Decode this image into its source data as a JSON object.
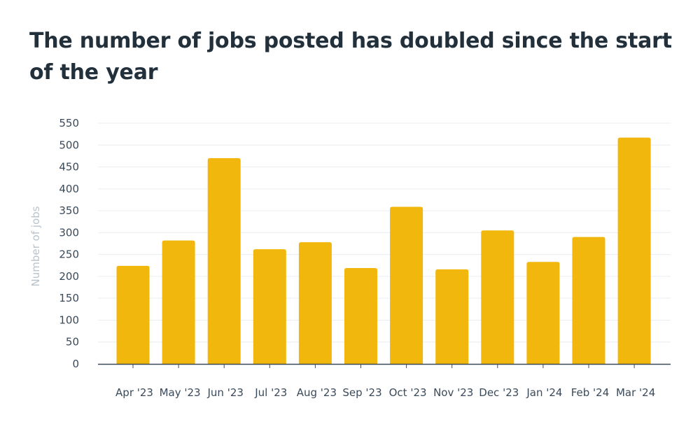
{
  "chart_data": {
    "type": "bar",
    "title": "The number of jobs posted has doubled since the start of the year",
    "ylabel": "Number of jobs",
    "xlabel": "",
    "categories": [
      "Apr '23",
      "May '23",
      "Jun '23",
      "Jul '23",
      "Aug '23",
      "Sep '23",
      "Oct '23",
      "Nov '23",
      "Dec '23",
      "Jan '24",
      "Feb '24",
      "Mar '24"
    ],
    "series": [
      {
        "values": [
          224,
          282,
          470,
          262,
          278,
          219,
          359,
          216,
          305,
          233,
          290,
          517
        ]
      }
    ],
    "ylim": [
      0,
      550
    ],
    "yticks": [
      0,
      50,
      100,
      150,
      200,
      250,
      300,
      350,
      400,
      450,
      500,
      550
    ],
    "grid": true,
    "legend": "none",
    "colors": {
      "bar": "#f2b70d",
      "grid": "#e9edf0",
      "axis": "#3c4b5a"
    }
  }
}
